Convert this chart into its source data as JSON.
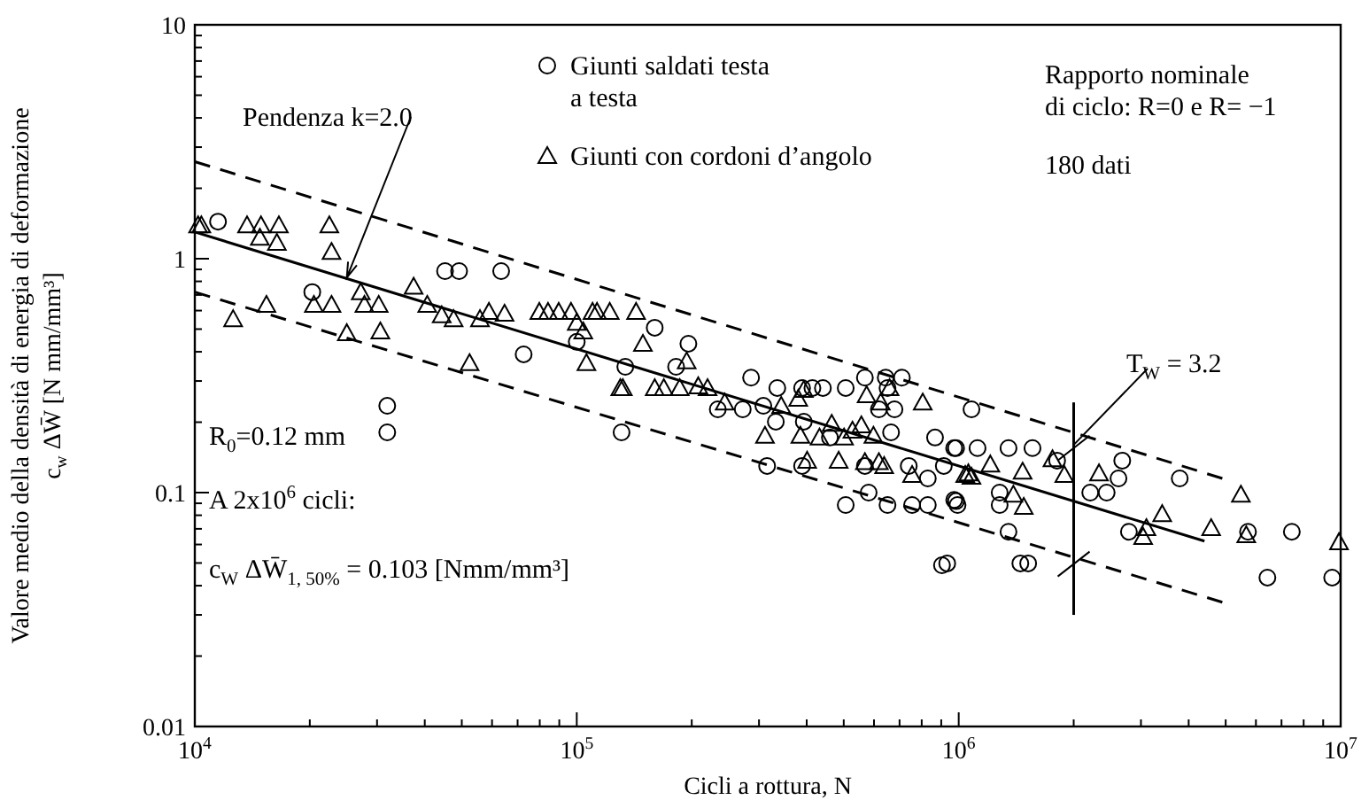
{
  "chart_data": {
    "type": "scatter",
    "xlabel": "Cicli a rottura, N",
    "ylabel": "Valore medio della densità di energia di deformazione\nc$_{w}$ ΔW̄ [N mm/mm³]",
    "log": "xy",
    "grid": false,
    "legend": "top",
    "xlim": [
      10000,
      10000000
    ],
    "ylim": [
      0.01,
      10
    ],
    "xticks": [
      {
        "value": 10000,
        "label": "10$^{4}$"
      },
      {
        "value": 20000,
        "label": null
      },
      {
        "value": 30000,
        "label": null
      },
      {
        "value": 40000,
        "label": null
      },
      {
        "value": 50000,
        "label": null
      },
      {
        "value": 60000,
        "label": null
      },
      {
        "value": 70000,
        "label": null
      },
      {
        "value": 80000,
        "label": null
      },
      {
        "value": 90000,
        "label": null
      },
      {
        "value": 100000,
        "label": "10$^{5}$"
      },
      {
        "value": 200000,
        "label": null
      },
      {
        "value": 300000,
        "label": null
      },
      {
        "value": 400000,
        "label": null
      },
      {
        "value": 500000,
        "label": null
      },
      {
        "value": 600000,
        "label": null
      },
      {
        "value": 700000,
        "label": null
      },
      {
        "value": 800000,
        "label": null
      },
      {
        "value": 900000,
        "label": null
      },
      {
        "value": 1000000,
        "label": "10$^{6}$"
      },
      {
        "value": 2000000,
        "label": null
      },
      {
        "value": 3000000,
        "label": null
      },
      {
        "value": 4000000,
        "label": null
      },
      {
        "value": 5000000,
        "label": null
      },
      {
        "value": 6000000,
        "label": null
      },
      {
        "value": 7000000,
        "label": null
      },
      {
        "value": 8000000,
        "label": null
      },
      {
        "value": 9000000,
        "label": null
      },
      {
        "value": 10000000,
        "label": "10$^{7}$"
      }
    ],
    "yticks": [
      0.01,
      {
        "value": 0.02,
        "label": null
      },
      {
        "value": 0.03,
        "label": null
      },
      {
        "value": 0.04,
        "label": null
      },
      {
        "value": 0.05,
        "label": null
      },
      {
        "value": 0.06,
        "label": null
      },
      {
        "value": 0.07,
        "label": null
      },
      {
        "value": 0.08,
        "label": null
      },
      {
        "value": 0.09,
        "label": null
      },
      0.1,
      {
        "value": 0.2,
        "label": null
      },
      {
        "value": 0.3,
        "label": null
      },
      {
        "value": 0.4,
        "label": null
      },
      {
        "value": 0.5,
        "label": null
      },
      {
        "value": 0.6,
        "label": null
      },
      {
        "value": 0.7,
        "label": null
      },
      {
        "value": 0.8,
        "label": null
      },
      {
        "value": 0.9,
        "label": null
      },
      1,
      {
        "value": 2,
        "label": null
      },
      {
        "value": 3,
        "label": null
      },
      {
        "value": 4,
        "label": null
      },
      {
        "value": 5,
        "label": null
      },
      {
        "value": 6,
        "label": null
      },
      {
        "value": 7,
        "label": null
      },
      {
        "value": 8,
        "label": null
      },
      {
        "value": 9,
        "label": null
      },
      10
    ],
    "series": [
      {
        "name": "Giunti saldati testa\na testa",
        "marker": "circle",
        "color": "#000000",
        "x": [
          11500,
          45200,
          49200,
          63400,
          20300,
          72600,
          31900,
          31900,
          100000,
          160000,
          196000,
          134000,
          182000,
          286000,
          335000,
          389000,
          414000,
          441000,
          506000,
          568000,
          644000,
          710000,
          651000,
          679000,
          618000,
          234000,
          272000,
          308000,
          332000,
          393000,
          460000,
          665000,
          867000,
          973000,
          1120000,
          1080000,
          131000,
          315000,
          389000,
          568000,
          740000,
          830000,
          914000,
          581000,
          506000,
          651000,
          755000,
          830000,
          973000,
          993000,
          904000,
          984000,
          1350000,
          1560000,
          1810000,
          2680000,
          2620000,
          3790000,
          1280000,
          1280000,
          984000,
          1350000,
          1450000,
          1520000,
          2790000,
          5720000,
          7450000,
          6430000,
          9500000,
          933000,
          2210000,
          2440000
        ],
        "values": [
          1.44,
          0.885,
          0.885,
          0.885,
          0.72,
          0.39,
          0.235,
          0.181,
          0.441,
          0.507,
          0.433,
          0.345,
          0.345,
          0.31,
          0.28,
          0.28,
          0.28,
          0.28,
          0.28,
          0.31,
          0.31,
          0.31,
          0.28,
          0.227,
          0.227,
          0.227,
          0.227,
          0.235,
          0.201,
          0.201,
          0.172,
          0.181,
          0.172,
          0.155,
          0.155,
          0.227,
          0.181,
          0.13,
          0.13,
          0.13,
          0.13,
          0.115,
          0.13,
          0.1,
          0.0885,
          0.0885,
          0.0885,
          0.0885,
          0.093,
          0.0885,
          0.0489,
          0.155,
          0.155,
          0.155,
          0.137,
          0.137,
          0.115,
          0.115,
          0.1,
          0.0885,
          0.092,
          0.068,
          0.0498,
          0.0498,
          0.068,
          0.068,
          0.068,
          0.0433,
          0.0433,
          0.0498,
          0.1,
          0.1
        ]
      },
      {
        "name": "Giunti con cordoni d’angolo",
        "marker": "triangle",
        "color": "#000000",
        "x": [
          10200,
          10400,
          13700,
          14900,
          16600,
          14800,
          16400,
          22500,
          22800,
          12600,
          15400,
          20500,
          22800,
          27200,
          27800,
          30300,
          25000,
          30600,
          37400,
          40600,
          44300,
          47600,
          52400,
          55800,
          58900,
          64700,
          79800,
          84100,
          89700,
          96600,
          100000,
          104000,
          110000,
          113000,
          122000,
          143000,
          149000,
          194000,
          106000,
          130000,
          132000,
          160000,
          169000,
          186000,
          208000,
          220000,
          244000,
          343000,
          380000,
          393000,
          311000,
          385000,
          432000,
          465000,
          501000,
          527000,
          556000,
          598000,
          659000,
          574000,
          625000,
          805000,
          401000,
          485000,
          568000,
          618000,
          638000,
          755000,
          1040000,
          1080000,
          1060000,
          1210000,
          1470000,
          1390000,
          1480000,
          1760000,
          1890000,
          2330000,
          3410000,
          3100000,
          3040000,
          4580000,
          5480000,
          5660000,
          9900000
        ],
        "values": [
          1.39,
          1.39,
          1.39,
          1.39,
          1.39,
          1.23,
          1.17,
          1.39,
          1.07,
          0.552,
          0.635,
          0.635,
          0.635,
          0.72,
          0.635,
          0.635,
          0.481,
          0.489,
          0.76,
          0.635,
          0.573,
          0.552,
          0.358,
          0.552,
          0.593,
          0.582,
          0.593,
          0.593,
          0.593,
          0.593,
          0.533,
          0.489,
          0.593,
          0.593,
          0.593,
          0.593,
          0.433,
          0.364,
          0.358,
          0.28,
          0.28,
          0.28,
          0.28,
          0.28,
          0.285,
          0.28,
          0.243,
          0.235,
          0.252,
          0.275,
          0.175,
          0.175,
          0.172,
          0.197,
          0.172,
          0.184,
          0.194,
          0.175,
          0.28,
          0.261,
          0.243,
          0.243,
          0.137,
          0.137,
          0.135,
          0.135,
          0.13,
          0.119,
          0.119,
          0.117,
          0.121,
          0.132,
          0.123,
          0.098,
          0.087,
          0.139,
          0.119,
          0.121,
          0.081,
          0.0705,
          0.0647,
          0.0705,
          0.098,
          0.0658,
          0.0614
        ]
      },
      {
        "type": "line",
        "line_style": "solid",
        "color": "#000000",
        "x": [
          10000,
          4400000
        ],
        "values": [
          1.3,
          0.062
        ]
      },
      {
        "type": "line",
        "line_style": "dashed",
        "color": "#000000",
        "x": [
          10000,
          4900000
        ],
        "values": [
          2.6,
          0.115
        ]
      },
      {
        "type": "line",
        "line_style": "dashed",
        "color": "#000000",
        "x": [
          10000,
          4900000
        ],
        "values": [
          0.72,
          0.034
        ]
      },
      {
        "type": "line",
        "line_style": "solid",
        "color": "#000000",
        "x": [
          2000000,
          2000000
        ],
        "values": [
          0.243,
          0.03
        ]
      }
    ],
    "annotations": [
      {
        "text": "Pendenza k=2.0",
        "x": 25000,
        "y": 0.83
      },
      {
        "text": "T$_{W}$ = 3.2",
        "x": 2000000,
        "y": 0.16
      },
      "Rapporto nominale\n di ciclo: R=0 e R= −1",
      "180 dati",
      "R$_{0}$=0.12 mm",
      "A 2x10$^{6}$ cicli:",
      "c$_{W}$ ΔW̄$_{1, 50%}$ = 0.103 [Nmm/mm³]"
    ]
  }
}
